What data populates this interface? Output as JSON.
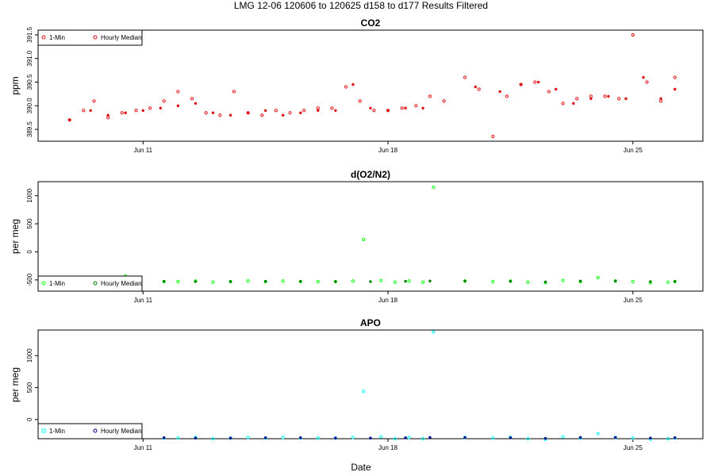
{
  "title": "LMG   12-06    120606 to 120625    d158 to d177   Results Filtered",
  "xlabel": "Date",
  "x_ticks": [
    "Jun 11",
    "Jun 18",
    "Jun 25"
  ],
  "legend": {
    "a": "1-Min",
    "b": "Hourly Median"
  },
  "colors": {
    "co2": "#e01010",
    "o2": "#00ff00",
    "o2_med": "#008000",
    "apo": "#00ffff",
    "apo_med": "#000090"
  },
  "chart_data": [
    {
      "type": "scatter",
      "title": "CO2",
      "ylabel": "ppm",
      "xlim": [
        158,
        177
      ],
      "ylim": [
        389.25,
        391.6
      ],
      "yticks": [
        "389.5",
        "390.0",
        "390.5",
        "391.0",
        "391.5"
      ],
      "ytick_values": [
        389.5,
        390.0,
        390.5,
        391.0,
        391.5
      ],
      "series": [
        {
          "name": "1-Min",
          "x": [
            158.9,
            159.3,
            159.6,
            160.0,
            160.4,
            160.8,
            161.2,
            161.6,
            162.0,
            162.4,
            162.8,
            163.2,
            163.6,
            164.0,
            164.4,
            164.8,
            165.2,
            165.6,
            166.0,
            166.4,
            166.8,
            167.2,
            167.6,
            168.0,
            168.4,
            168.8,
            169.2,
            169.6,
            170.2,
            170.6,
            171.0,
            171.4,
            171.8,
            172.2,
            172.6,
            173.0,
            173.4,
            173.8,
            174.2,
            174.6,
            175.0,
            175.4,
            175.8,
            176.2
          ],
          "y": [
            389.7,
            389.9,
            390.1,
            389.75,
            389.85,
            389.9,
            389.95,
            390.1,
            390.3,
            390.15,
            389.85,
            389.8,
            390.3,
            389.85,
            389.8,
            389.9,
            389.85,
            389.9,
            389.95,
            389.95,
            390.4,
            390.1,
            389.9,
            389.9,
            389.95,
            390.0,
            390.2,
            390.1,
            390.6,
            390.35,
            389.35,
            390.2,
            390.45,
            390.5,
            390.3,
            390.05,
            390.15,
            390.2,
            390.2,
            390.15,
            391.5,
            390.5,
            390.1,
            390.6
          ]
        },
        {
          "name": "Hourly Median",
          "x": [
            158.9,
            159.5,
            160.0,
            160.5,
            161.0,
            161.5,
            162.0,
            162.5,
            163.0,
            163.5,
            164.0,
            164.5,
            165.0,
            165.5,
            166.0,
            166.5,
            167.0,
            167.5,
            168.0,
            168.5,
            169.0,
            170.5,
            171.2,
            171.8,
            172.3,
            172.8,
            173.3,
            173.8,
            174.3,
            174.8,
            175.3,
            175.8,
            176.2
          ],
          "y": [
            389.7,
            389.9,
            389.8,
            389.85,
            389.9,
            389.95,
            390.0,
            390.05,
            389.85,
            389.8,
            389.85,
            389.9,
            389.8,
            389.85,
            389.9,
            389.9,
            390.45,
            389.95,
            389.9,
            389.95,
            389.95,
            390.4,
            390.3,
            390.45,
            390.5,
            390.35,
            390.05,
            390.15,
            390.2,
            390.15,
            390.6,
            390.15,
            390.35
          ]
        }
      ]
    },
    {
      "type": "scatter",
      "title": "d(O2/N2)",
      "ylabel": "per meg",
      "xlim": [
        158,
        177
      ],
      "ylim": [
        -700,
        1250
      ],
      "yticks": [
        "-500",
        "0",
        "500",
        "1000"
      ],
      "ytick_values": [
        -500,
        0,
        500,
        1000
      ],
      "series": [
        {
          "name": "1-Min",
          "x": [
            159.0,
            159.4,
            160.5,
            161.6,
            162.0,
            162.5,
            163.0,
            163.5,
            164.0,
            164.5,
            165.0,
            165.5,
            166.0,
            166.5,
            167.0,
            167.3,
            167.8,
            168.2,
            168.6,
            169.0,
            169.3,
            170.2,
            171.0,
            171.5,
            172.0,
            172.5,
            173.0,
            173.5,
            174.0,
            174.5,
            175.0,
            175.5,
            176.0,
            176.2
          ],
          "y": [
            -450,
            -460,
            -430,
            -530,
            -530,
            -520,
            -540,
            -530,
            -520,
            -530,
            -520,
            -530,
            -530,
            -530,
            -520,
            220,
            -510,
            -540,
            -520,
            -540,
            1150,
            -520,
            -530,
            -520,
            -540,
            -550,
            -510,
            -530,
            -460,
            -520,
            -530,
            -550,
            -540,
            -530
          ]
        },
        {
          "name": "Hourly Median",
          "x": [
            161.6,
            162.5,
            163.5,
            164.5,
            165.5,
            166.5,
            167.5,
            168.5,
            169.2,
            170.2,
            171.5,
            172.5,
            173.5,
            174.5,
            175.5,
            176.2
          ],
          "y": [
            -525,
            -530,
            -530,
            -525,
            -525,
            -530,
            -530,
            -525,
            -520,
            -520,
            -525,
            -535,
            -520,
            -520,
            -530,
            -525
          ]
        }
      ]
    },
    {
      "type": "scatter",
      "title": "APO",
      "ylabel": "per meg",
      "xlim": [
        158,
        177
      ],
      "ylim": [
        -300,
        1400
      ],
      "yticks": [
        "0",
        "500",
        "1000"
      ],
      "ytick_values": [
        0,
        500,
        1000
      ],
      "series": [
        {
          "name": "1-Min",
          "x": [
            159.0,
            159.4,
            160.5,
            161.6,
            162.0,
            162.5,
            163.0,
            163.5,
            164.0,
            164.5,
            165.0,
            165.5,
            166.0,
            166.5,
            167.0,
            167.3,
            167.8,
            168.2,
            168.6,
            169.0,
            169.3,
            170.2,
            171.0,
            171.5,
            172.0,
            172.5,
            173.0,
            173.5,
            174.0,
            174.5,
            175.0,
            175.5,
            176.0,
            176.2
          ],
          "y": [
            -210,
            -220,
            -190,
            -290,
            -290,
            -280,
            -300,
            -290,
            -280,
            -290,
            -280,
            -290,
            -290,
            -290,
            -280,
            440,
            -270,
            -300,
            -280,
            -300,
            1370,
            -280,
            -290,
            -280,
            -300,
            -310,
            -270,
            -290,
            -220,
            -280,
            -290,
            -310,
            -300,
            -290
          ]
        },
        {
          "name": "Hourly Median",
          "x": [
            161.6,
            162.5,
            163.5,
            164.5,
            165.5,
            166.5,
            167.5,
            168.5,
            169.2,
            170.2,
            171.5,
            172.5,
            173.5,
            174.5,
            175.5,
            176.2
          ],
          "y": [
            -285,
            -290,
            -290,
            -285,
            -285,
            -290,
            -290,
            -285,
            -280,
            -280,
            -285,
            -295,
            -280,
            -280,
            -290,
            -285
          ]
        }
      ]
    }
  ]
}
